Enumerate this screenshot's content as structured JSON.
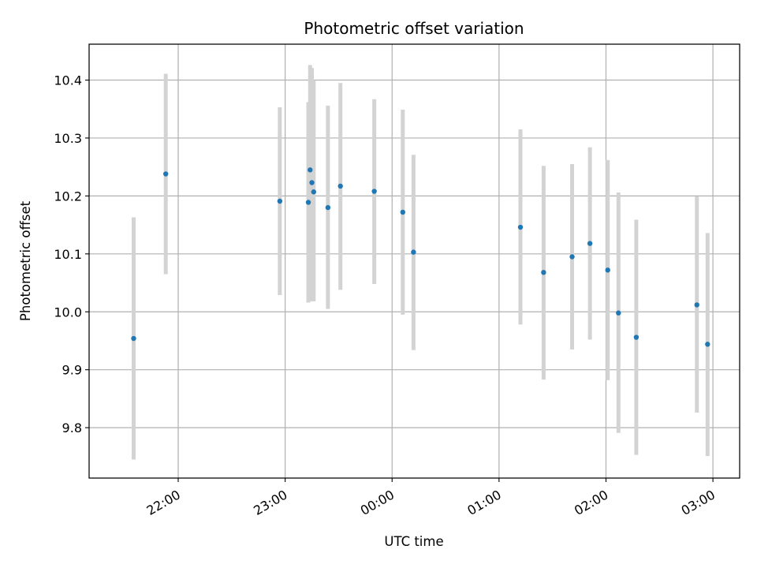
{
  "chart_data": {
    "type": "scatter",
    "title": "Photometric offset variation",
    "xlabel": "UTC time",
    "ylabel": "Photometric offset",
    "grid": true,
    "xlim": [
      "21:10",
      "03:15"
    ],
    "ylim": [
      9.713,
      10.462
    ],
    "x_ticks": [
      "22:00",
      "23:00",
      "00:00",
      "01:00",
      "02:00",
      "03:00"
    ],
    "y_ticks": [
      "9.8",
      "9.9",
      "10.0",
      "10.1",
      "10.2",
      "10.3",
      "10.4"
    ],
    "point_color": "#1f77b4",
    "errorbar_color": "#d3d3d3",
    "points": [
      {
        "x": "21:35",
        "y": 9.954,
        "low": 9.745,
        "high": 10.163
      },
      {
        "x": "21:53",
        "y": 10.238,
        "low": 10.065,
        "high": 10.411
      },
      {
        "x": "22:57",
        "y": 10.191,
        "low": 10.029,
        "high": 10.353
      },
      {
        "x": "23:13",
        "y": 10.189,
        "low": 10.016,
        "high": 10.362
      },
      {
        "x": "23:14",
        "y": 10.245,
        "low": 10.064,
        "high": 10.426
      },
      {
        "x": "23:15",
        "y": 10.223,
        "low": 10.018,
        "high": 10.421
      },
      {
        "x": "23:16",
        "y": 10.207,
        "low": 10.018,
        "high": 10.4
      },
      {
        "x": "23:24",
        "y": 10.18,
        "low": 10.005,
        "high": 10.356
      },
      {
        "x": "23:31",
        "y": 10.217,
        "low": 10.038,
        "high": 10.395
      },
      {
        "x": "23:50",
        "y": 10.208,
        "low": 10.048,
        "high": 10.367
      },
      {
        "x": "00:06",
        "y": 10.172,
        "low": 9.995,
        "high": 10.349
      },
      {
        "x": "00:12",
        "y": 10.103,
        "low": 9.934,
        "high": 10.271
      },
      {
        "x": "01:12",
        "y": 10.146,
        "low": 9.978,
        "high": 10.315
      },
      {
        "x": "01:25",
        "y": 10.068,
        "low": 9.883,
        "high": 10.252
      },
      {
        "x": "01:41",
        "y": 10.095,
        "low": 9.935,
        "high": 10.255
      },
      {
        "x": "01:51",
        "y": 10.118,
        "low": 9.952,
        "high": 10.284
      },
      {
        "x": "02:01",
        "y": 10.072,
        "low": 9.882,
        "high": 10.262
      },
      {
        "x": "02:07",
        "y": 9.998,
        "low": 9.791,
        "high": 10.206
      },
      {
        "x": "02:17",
        "y": 9.956,
        "low": 9.753,
        "high": 10.159
      },
      {
        "x": "02:51",
        "y": 10.012,
        "low": 9.826,
        "high": 10.199
      },
      {
        "x": "02:57",
        "y": 9.944,
        "low": 9.751,
        "high": 10.136
      }
    ]
  }
}
